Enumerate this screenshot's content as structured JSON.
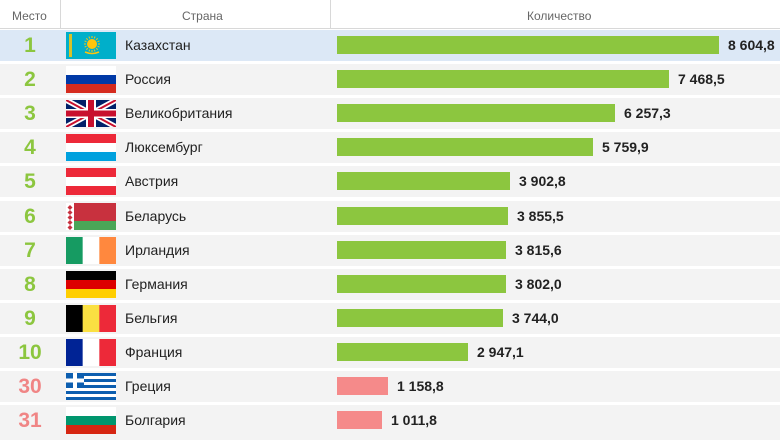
{
  "header": {
    "rank": "Место",
    "country": "Страна",
    "value": "Количество"
  },
  "colors": {
    "top_rank": "#8cc63f",
    "low_rank": "#f08585",
    "top_bar": "#8cc63f",
    "low_bar": "#f58a8a",
    "selected_row": "#dce8f6"
  },
  "chart_data": {
    "type": "bar",
    "orientation": "horizontal",
    "title": "",
    "xlabel": "Количество",
    "ylabel": "Страна",
    "rows": [
      {
        "rank": "1",
        "country": "Казахстан",
        "value": 8604.8,
        "label": "8 604,8",
        "flag": "kazakhstan-flag",
        "group": "top"
      },
      {
        "rank": "2",
        "country": "Россия",
        "value": 7468.5,
        "label": "7 468,5",
        "flag": "russia-flag",
        "group": "top"
      },
      {
        "rank": "3",
        "country": "Великобритания",
        "value": 6257.3,
        "label": "6 257,3",
        "flag": "uk-flag",
        "group": "top"
      },
      {
        "rank": "4",
        "country": "Люксембург",
        "value": 5759.9,
        "label": "5 759,9",
        "flag": "luxembourg-flag",
        "group": "top"
      },
      {
        "rank": "5",
        "country": "Австрия",
        "value": 3902.8,
        "label": "3 902,8",
        "flag": "austria-flag",
        "group": "top"
      },
      {
        "rank": "6",
        "country": "Беларусь",
        "value": 3855.5,
        "label": "3 855,5",
        "flag": "belarus-flag",
        "group": "top"
      },
      {
        "rank": "7",
        "country": "Ирландия",
        "value": 3815.6,
        "label": "3 815,6",
        "flag": "ireland-flag",
        "group": "top"
      },
      {
        "rank": "8",
        "country": "Германия",
        "value": 3802.0,
        "label": "3 802,0",
        "flag": "germany-flag",
        "group": "top"
      },
      {
        "rank": "9",
        "country": "Бельгия",
        "value": 3744.0,
        "label": "3 744,0",
        "flag": "belgium-flag",
        "group": "top"
      },
      {
        "rank": "10",
        "country": "Франция",
        "value": 2947.1,
        "label": "2 947,1",
        "flag": "france-flag",
        "group": "top"
      },
      {
        "rank": "30",
        "country": "Греция",
        "value": 1158.8,
        "label": "1 158,8",
        "flag": "greece-flag",
        "group": "low"
      },
      {
        "rank": "31",
        "country": "Болгария",
        "value": 1011.8,
        "label": "1 011,8",
        "flag": "bulgaria-flag",
        "group": "low"
      }
    ],
    "selected_rank": "1",
    "grid": false,
    "legend": "none"
  }
}
